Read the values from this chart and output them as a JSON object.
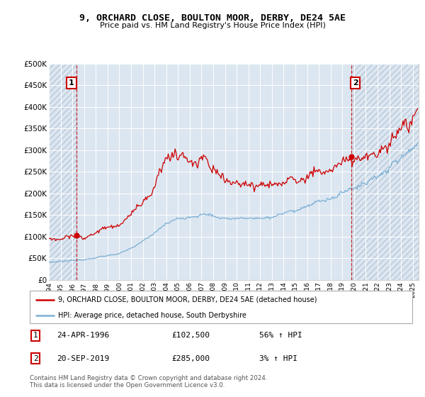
{
  "title": "9, ORCHARD CLOSE, BOULTON MOOR, DERBY, DE24 5AE",
  "subtitle": "Price paid vs. HM Land Registry's House Price Index (HPI)",
  "ylim": [
    0,
    500000
  ],
  "yticks": [
    0,
    50000,
    100000,
    150000,
    200000,
    250000,
    300000,
    350000,
    400000,
    450000,
    500000
  ],
  "ytick_labels": [
    "£0",
    "£50K",
    "£100K",
    "£150K",
    "£200K",
    "£250K",
    "£300K",
    "£350K",
    "£400K",
    "£450K",
    "£500K"
  ],
  "sale1_year": 1996.32,
  "sale1_price": 102500,
  "sale2_year": 2019.75,
  "sale2_price": 285000,
  "legend1": "9, ORCHARD CLOSE, BOULTON MOOR, DERBY, DE24 5AE (detached house)",
  "legend2": "HPI: Average price, detached house, South Derbyshire",
  "table_row1": [
    "1",
    "24-APR-1996",
    "£102,500",
    "56% ↑ HPI"
  ],
  "table_row2": [
    "2",
    "20-SEP-2019",
    "£285,000",
    "3% ↑ HPI"
  ],
  "footnote": "Contains HM Land Registry data © Crown copyright and database right 2024.\nThis data is licensed under the Open Government Licence v3.0.",
  "bg_color": "#dce6f1",
  "red_color": "#cc0000",
  "blue_color": "#7bafd4",
  "hatch_color": "#b8c8d8",
  "xmin": 1994.0,
  "xmax": 2025.5
}
